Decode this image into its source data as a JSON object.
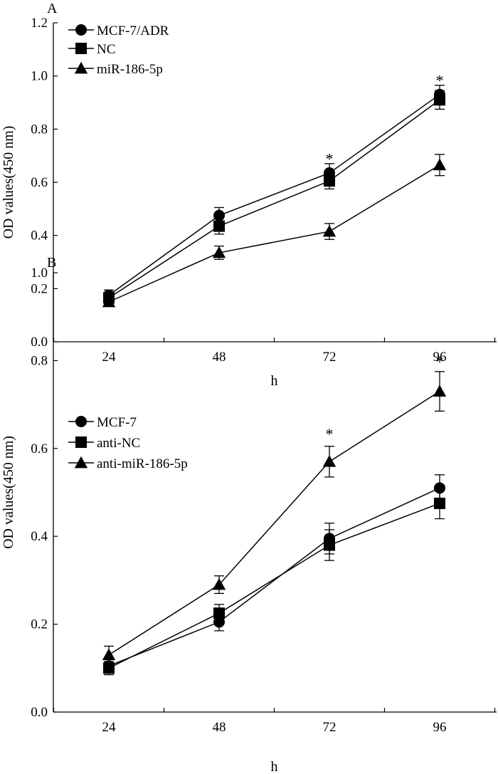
{
  "chart_data": [
    {
      "panel": "A",
      "type": "line",
      "categories": [
        "24",
        "48",
        "72",
        "96"
      ],
      "xlabel": "h",
      "ylabel": "OD values(450 nm)",
      "ylim": [
        0,
        1.2
      ],
      "yticks": [
        "0.0",
        "0.2",
        "0.4",
        "0.6",
        "0.8",
        "1.0",
        "1.2"
      ],
      "legend_position": "top-left",
      "series": [
        {
          "name": "MCF-7/ADR",
          "marker": "circle",
          "values": [
            0.175,
            0.475,
            0.635,
            0.93
          ],
          "errors": [
            0.02,
            0.03,
            0.035,
            0.035
          ]
        },
        {
          "name": "NC",
          "marker": "square",
          "values": [
            0.165,
            0.435,
            0.605,
            0.91
          ],
          "errors": [
            0.02,
            0.03,
            0.03,
            0.035
          ]
        },
        {
          "name": "miR-186-5p",
          "marker": "triangle",
          "values": [
            0.15,
            0.335,
            0.415,
            0.665
          ],
          "errors": [
            0.015,
            0.025,
            0.03,
            0.04
          ]
        }
      ],
      "annotations": [
        {
          "text": "*",
          "category": "72",
          "value": 0.7
        },
        {
          "text": "*",
          "category": "96",
          "value": 0.995
        }
      ]
    },
    {
      "panel": "B",
      "type": "line",
      "categories": [
        "24",
        "48",
        "72",
        "96"
      ],
      "xlabel": "h",
      "ylabel": "OD values(450 nm)",
      "ylim": [
        0,
        1.0
      ],
      "yticks": [
        "0.0",
        "0.2",
        "0.4",
        "0.6",
        "0.8",
        "1.0"
      ],
      "legend_position": "top-left",
      "series": [
        {
          "name": "MCF-7",
          "marker": "circle",
          "values": [
            0.105,
            0.205,
            0.395,
            0.51
          ],
          "errors": [
            0.015,
            0.02,
            0.035,
            0.03
          ]
        },
        {
          "name": "anti-NC",
          "marker": "square",
          "values": [
            0.1,
            0.225,
            0.38,
            0.475
          ],
          "errors": [
            0.015,
            0.02,
            0.035,
            0.035
          ]
        },
        {
          "name": "anti-miR-186-5p",
          "marker": "triangle",
          "values": [
            0.13,
            0.29,
            0.57,
            0.73
          ],
          "errors": [
            0.02,
            0.02,
            0.035,
            0.045
          ]
        }
      ],
      "annotations": [
        {
          "text": "*",
          "category": "72",
          "value": 0.64
        },
        {
          "text": "*",
          "category": "96",
          "value": 0.805
        }
      ]
    }
  ]
}
